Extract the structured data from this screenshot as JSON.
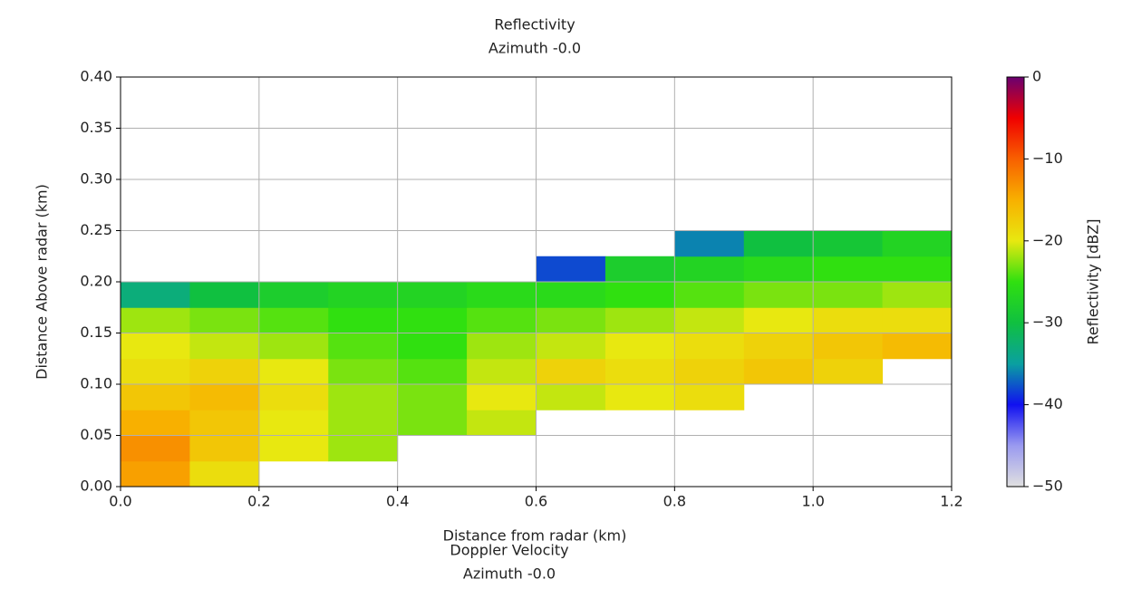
{
  "chart_data": [
    {
      "type": "heatmap",
      "title": "Reflectivity",
      "subtitle": "Azimuth -0.0",
      "x_label": "Distance from radar (km)",
      "y_label": "Distance Above radar  (km)",
      "colorbar_label": "Reflectivity [dBZ]",
      "x_edges": [
        0,
        0.1,
        0.2,
        0.3,
        0.4,
        0.5,
        0.6,
        0.7,
        0.8,
        0.9,
        1,
        1.1,
        1.2
      ],
      "y_edges": [
        0,
        0.025,
        0.05,
        0.075,
        0.1,
        0.125,
        0.15,
        0.175,
        0.2,
        0.225,
        0.25
      ],
      "z": [
        [
          -14,
          -19,
          null,
          null,
          null,
          null,
          null,
          null,
          null,
          null,
          null,
          null
        ],
        [
          -13,
          -17,
          -20,
          -22,
          null,
          null,
          null,
          null,
          null,
          null,
          null,
          null
        ],
        [
          -15,
          -17,
          -20,
          -22,
          -23,
          -21,
          null,
          null,
          null,
          null,
          null,
          null
        ],
        [
          -17,
          -16,
          -19,
          -22,
          -23,
          -20,
          -21,
          -20,
          -19,
          null,
          null,
          null
        ],
        [
          -19,
          -18,
          -20,
          -23,
          -24,
          -21,
          -18,
          -19,
          -18,
          -17,
          -18,
          null
        ],
        [
          -20,
          -21,
          -22,
          -24,
          -25,
          -22,
          -21,
          -20,
          -19,
          -18,
          -17,
          -16
        ],
        [
          -22,
          -23,
          -24,
          -25,
          -25,
          -24,
          -23,
          -22,
          -21,
          -20,
          -19,
          -19
        ],
        [
          -33,
          -30,
          -28,
          -27,
          -27,
          -26,
          -26,
          -25,
          -24,
          -23,
          -23,
          -22
        ],
        [
          null,
          null,
          null,
          null,
          null,
          null,
          -38,
          -28,
          -27,
          -26,
          -25,
          -25
        ],
        [
          null,
          null,
          null,
          null,
          null,
          null,
          null,
          null,
          -36,
          -30,
          -29,
          -27
        ]
      ],
      "xlim": [
        0,
        1.2
      ],
      "xticks": [
        {
          "value": 0,
          "label": "0.0"
        },
        0.2,
        0.4,
        0.6,
        0.8,
        {
          "value": 1,
          "label": "1.0"
        },
        1.2
      ],
      "ylim": [
        0,
        0.4
      ],
      "yticks": [
        {
          "value": 0,
          "label": "0.00"
        },
        {
          "value": 0.05,
          "label": "0.05"
        },
        {
          "value": 0.1,
          "label": "0.10"
        },
        {
          "value": 0.15,
          "label": "0.15"
        },
        {
          "value": 0.2,
          "label": "0.20"
        },
        {
          "value": 0.25,
          "label": "0.25"
        },
        {
          "value": 0.3,
          "label": "0.30"
        },
        {
          "value": 0.35,
          "label": "0.35"
        },
        {
          "value": 0.4,
          "label": "0.40"
        }
      ],
      "clim": [
        -50,
        0
      ],
      "cticks": [
        {
          "value": -50,
          "label": "−50"
        },
        {
          "value": -40,
          "label": "−40"
        },
        {
          "value": -30,
          "label": "−30"
        },
        {
          "value": -20,
          "label": "−20"
        },
        {
          "value": -10,
          "label": "−10"
        },
        0
      ],
      "colormap": [
        "#e0e0e0",
        "#9a9af0",
        "#1010f0",
        "#0aa0a0",
        "#10c040",
        "#30e010",
        "#e8e810",
        "#f8b000",
        "#f86000",
        "#f00000",
        "#6a0070"
      ],
      "grid": true
    },
    {
      "type": "heatmap",
      "title": "Doppler Velocity",
      "subtitle": "Azimuth -0.0"
    }
  ]
}
